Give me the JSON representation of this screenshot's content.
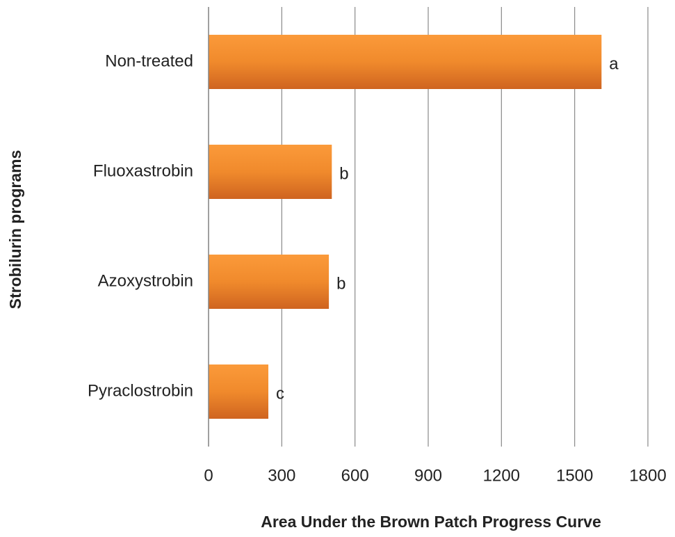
{
  "chart_data": {
    "type": "barh",
    "xlabel": "Area Under the Brown Patch Progress  Curve",
    "ylabel": "Strobilurin programs",
    "categories": [
      "Non-treated",
      "Fluoxastrobin",
      "Azoxystrobin",
      "Pyraclostrobin"
    ],
    "values": [
      1610,
      505,
      493,
      245
    ],
    "annotations": [
      "a",
      "b",
      "b",
      "c"
    ],
    "color": "#f08a2c",
    "xlim": [
      0,
      1800
    ],
    "xticks": [
      0,
      300,
      600,
      900,
      1200,
      1500,
      1800
    ],
    "grid": true
  }
}
